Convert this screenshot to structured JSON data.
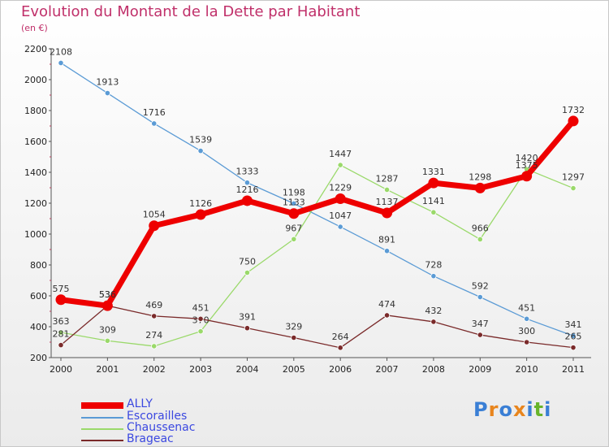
{
  "title": "Evolution du Montant de la Dette par Habitant",
  "subtitle": "(en €)",
  "logo": {
    "text": "Proxiti",
    "colors": [
      "#3a7fd5",
      "#e8851d",
      "#3a7fd5",
      "#e8851d",
      "#3a7fd5",
      "#68b42a",
      "#3a7fd5"
    ]
  },
  "chart_data": {
    "type": "line",
    "title": "Evolution du Montant de la Dette par Habitant",
    "subtitle": "(en €)",
    "categories": [
      "2000",
      "2001",
      "2002",
      "2003",
      "2004",
      "2005",
      "2006",
      "2007",
      "2008",
      "2009",
      "2010",
      "2011"
    ],
    "ylim": [
      200,
      2200
    ],
    "yticks": [
      "200",
      "400",
      "600",
      "800",
      "1000",
      "1200",
      "1400",
      "1600",
      "1800",
      "2000",
      "2200"
    ],
    "grid": false,
    "legend_position": "bottom-left",
    "series": [
      {
        "name": "Escorailles",
        "color": "#5b9bd5",
        "values": [
          2108,
          1913,
          1716,
          1539,
          1333,
          1198,
          1047,
          891,
          728,
          592,
          451,
          341
        ],
        "labels": [
          "2108",
          "1913",
          "1716",
          "1539",
          "1333",
          "1198",
          "1047",
          "891",
          "728",
          "592",
          "451",
          "341"
        ]
      },
      {
        "name": "Chaussenac",
        "color": "#9ad96a",
        "values": [
          363,
          309,
          274,
          370,
          750,
          967,
          1447,
          1287,
          1141,
          966,
          1420,
          1297
        ],
        "labels": [
          "363",
          "309",
          "274",
          "370",
          "750",
          "967",
          "1447",
          "1287",
          "1141",
          "966",
          "1420",
          "1297"
        ]
      },
      {
        "name": "Brageac",
        "color": "#7a2a2a",
        "values": [
          281,
          536,
          469,
          451,
          391,
          329,
          264,
          474,
          432,
          347,
          300,
          265
        ],
        "labels": [
          "281",
          "536",
          "469",
          "451",
          "391",
          "329",
          "264",
          "474",
          "432",
          "347",
          "300",
          "265"
        ]
      },
      {
        "name": "ALLY",
        "color": "#ee0000",
        "values": [
          575,
          536,
          1054,
          1126,
          1216,
          1133,
          1229,
          1137,
          1331,
          1298,
          1375,
          1732
        ],
        "labels": [
          "575",
          "536",
          "1054",
          "1126",
          "1216",
          "1133",
          "1229",
          "1137",
          "1331",
          "1298",
          "1375",
          "1732"
        ]
      }
    ],
    "legend": [
      {
        "name": "ALLY",
        "color": "#ee0000"
      },
      {
        "name": "Escorailles",
        "color": "#5b9bd5"
      },
      {
        "name": "Chaussenac",
        "color": "#9ad96a"
      },
      {
        "name": "Brageac",
        "color": "#7a2a2a"
      }
    ]
  }
}
